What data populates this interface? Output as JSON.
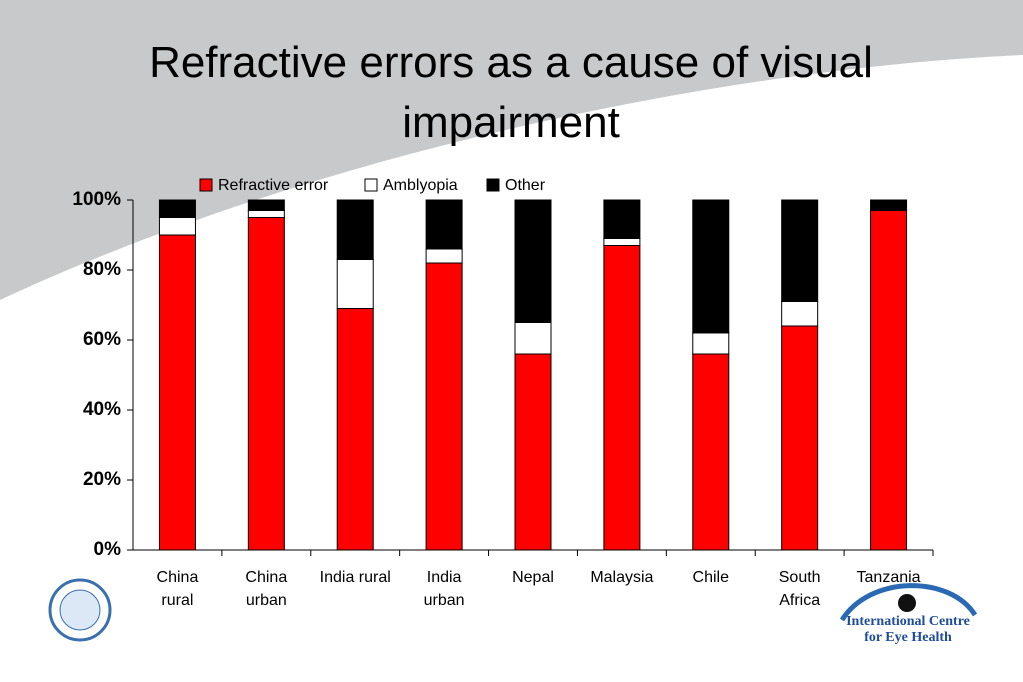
{
  "chart_data": {
    "type": "stacked_bar",
    "title": "Refractive errors as a cause of visual\nimpairment",
    "categories": [
      "China\nrural",
      "China\nurban",
      "India rural",
      "India\nurban",
      "Nepal",
      "Malaysia",
      "Chile",
      "South\nAfrica",
      "Tanzania"
    ],
    "series": [
      {
        "name": "Refractive error",
        "color": "#ff0000",
        "values": [
          90,
          95,
          69,
          82,
          56,
          87,
          56,
          64,
          97
        ]
      },
      {
        "name": "Amblyopia",
        "color": "#ffffff",
        "values": [
          5,
          2,
          14,
          4,
          9,
          2,
          6,
          7,
          0
        ]
      },
      {
        "name": "Other",
        "color": "#000000",
        "values": [
          5,
          3,
          17,
          14,
          35,
          11,
          38,
          29,
          3
        ]
      }
    ],
    "ylim": [
      0,
      100
    ],
    "yticks": [
      {
        "value": 0,
        "label": "0%"
      },
      {
        "value": 20,
        "label": "20%"
      },
      {
        "value": 40,
        "label": "40%"
      },
      {
        "value": 60,
        "label": "60%"
      },
      {
        "value": 80,
        "label": "80%"
      },
      {
        "value": 100,
        "label": "100%"
      }
    ],
    "legend": "top"
  },
  "logo": {
    "text": "International Centre\nfor Eye Health"
  }
}
